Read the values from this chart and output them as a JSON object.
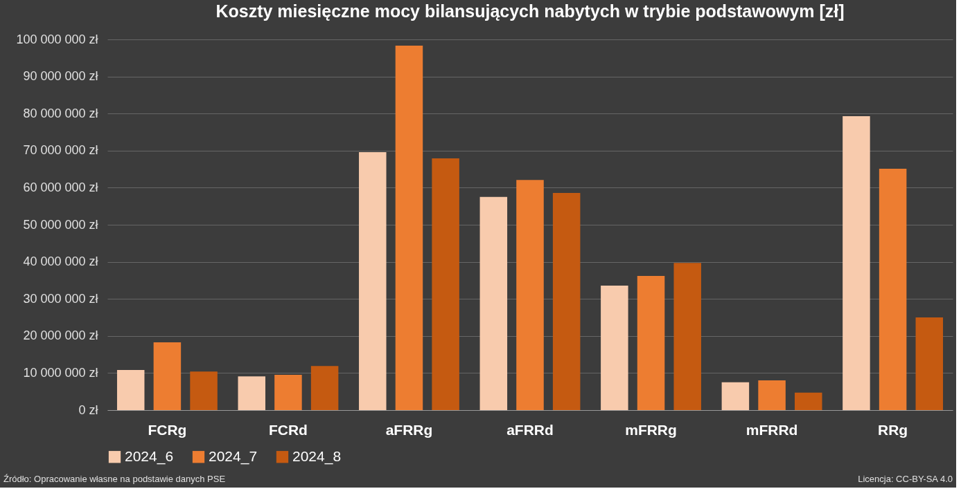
{
  "chart_data": {
    "type": "bar",
    "title": "Koszty miesięczne mocy bilansujących nabytych w trybie podstawowym [zł]",
    "categories": [
      "FCRg",
      "FCRd",
      "aFRRg",
      "aFRRd",
      "mFRRg",
      "mFRRd",
      "RRg"
    ],
    "series": [
      {
        "name": "2024_6",
        "color": "#f8cbad",
        "values": [
          10800000,
          9100000,
          69600000,
          57500000,
          33600000,
          7500000,
          79300000
        ]
      },
      {
        "name": "2024_7",
        "color": "#ed7d31",
        "values": [
          18300000,
          9500000,
          98300000,
          62100000,
          36200000,
          8000000,
          65100000
        ]
      },
      {
        "name": "2024_8",
        "color": "#c55a11",
        "values": [
          10400000,
          11900000,
          67900000,
          58600000,
          39700000,
          4700000,
          25000000
        ]
      }
    ],
    "ylim": [
      0,
      100000000
    ],
    "yticks": [
      {
        "value": 0,
        "label": "0 zł"
      },
      {
        "value": 10000000,
        "label": "10 000 000 zł"
      },
      {
        "value": 20000000,
        "label": "20 000 000 zł"
      },
      {
        "value": 30000000,
        "label": "30 000 000 zł"
      },
      {
        "value": 40000000,
        "label": "40 000 000 zł"
      },
      {
        "value": 50000000,
        "label": "50 000 000 zł"
      },
      {
        "value": 60000000,
        "label": "60 000 000 zł"
      },
      {
        "value": 70000000,
        "label": "70 000 000 zł"
      },
      {
        "value": 80000000,
        "label": "80 000 000 zł"
      },
      {
        "value": 90000000,
        "label": "90 000 000 zł"
      },
      {
        "value": 100000000,
        "label": "100 000 000 zł"
      }
    ],
    "grid": "y",
    "legend": "bottom",
    "annotations": [
      "Źródło: Opracowanie własne na podstawie danych PSE",
      "Licencja: CC-BY-SA 4.0"
    ]
  }
}
